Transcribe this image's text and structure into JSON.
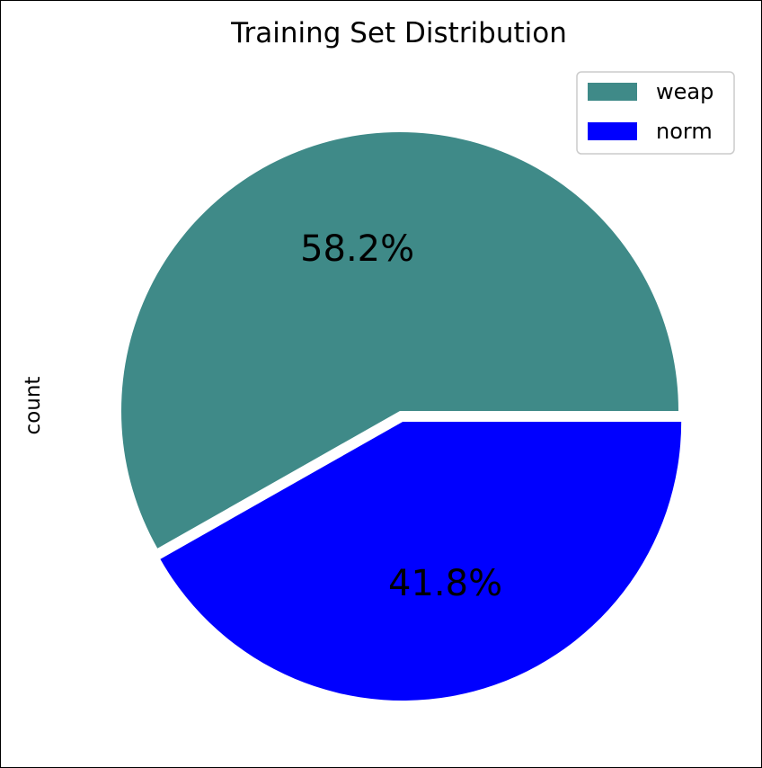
{
  "chart_data": {
    "type": "pie",
    "title": "Training Set Distribution",
    "ylabel": "count",
    "labels": [
      "weap",
      "norm"
    ],
    "values": [
      58.2,
      41.8
    ],
    "percent_labels": [
      "58.2%",
      "41.8%"
    ],
    "colors": [
      "#3f8a88",
      "#0000ff"
    ],
    "explode": [
      0,
      0.04
    ],
    "start_angle": 0,
    "direction": "counterclockwise",
    "legend_position": "upper-right"
  }
}
